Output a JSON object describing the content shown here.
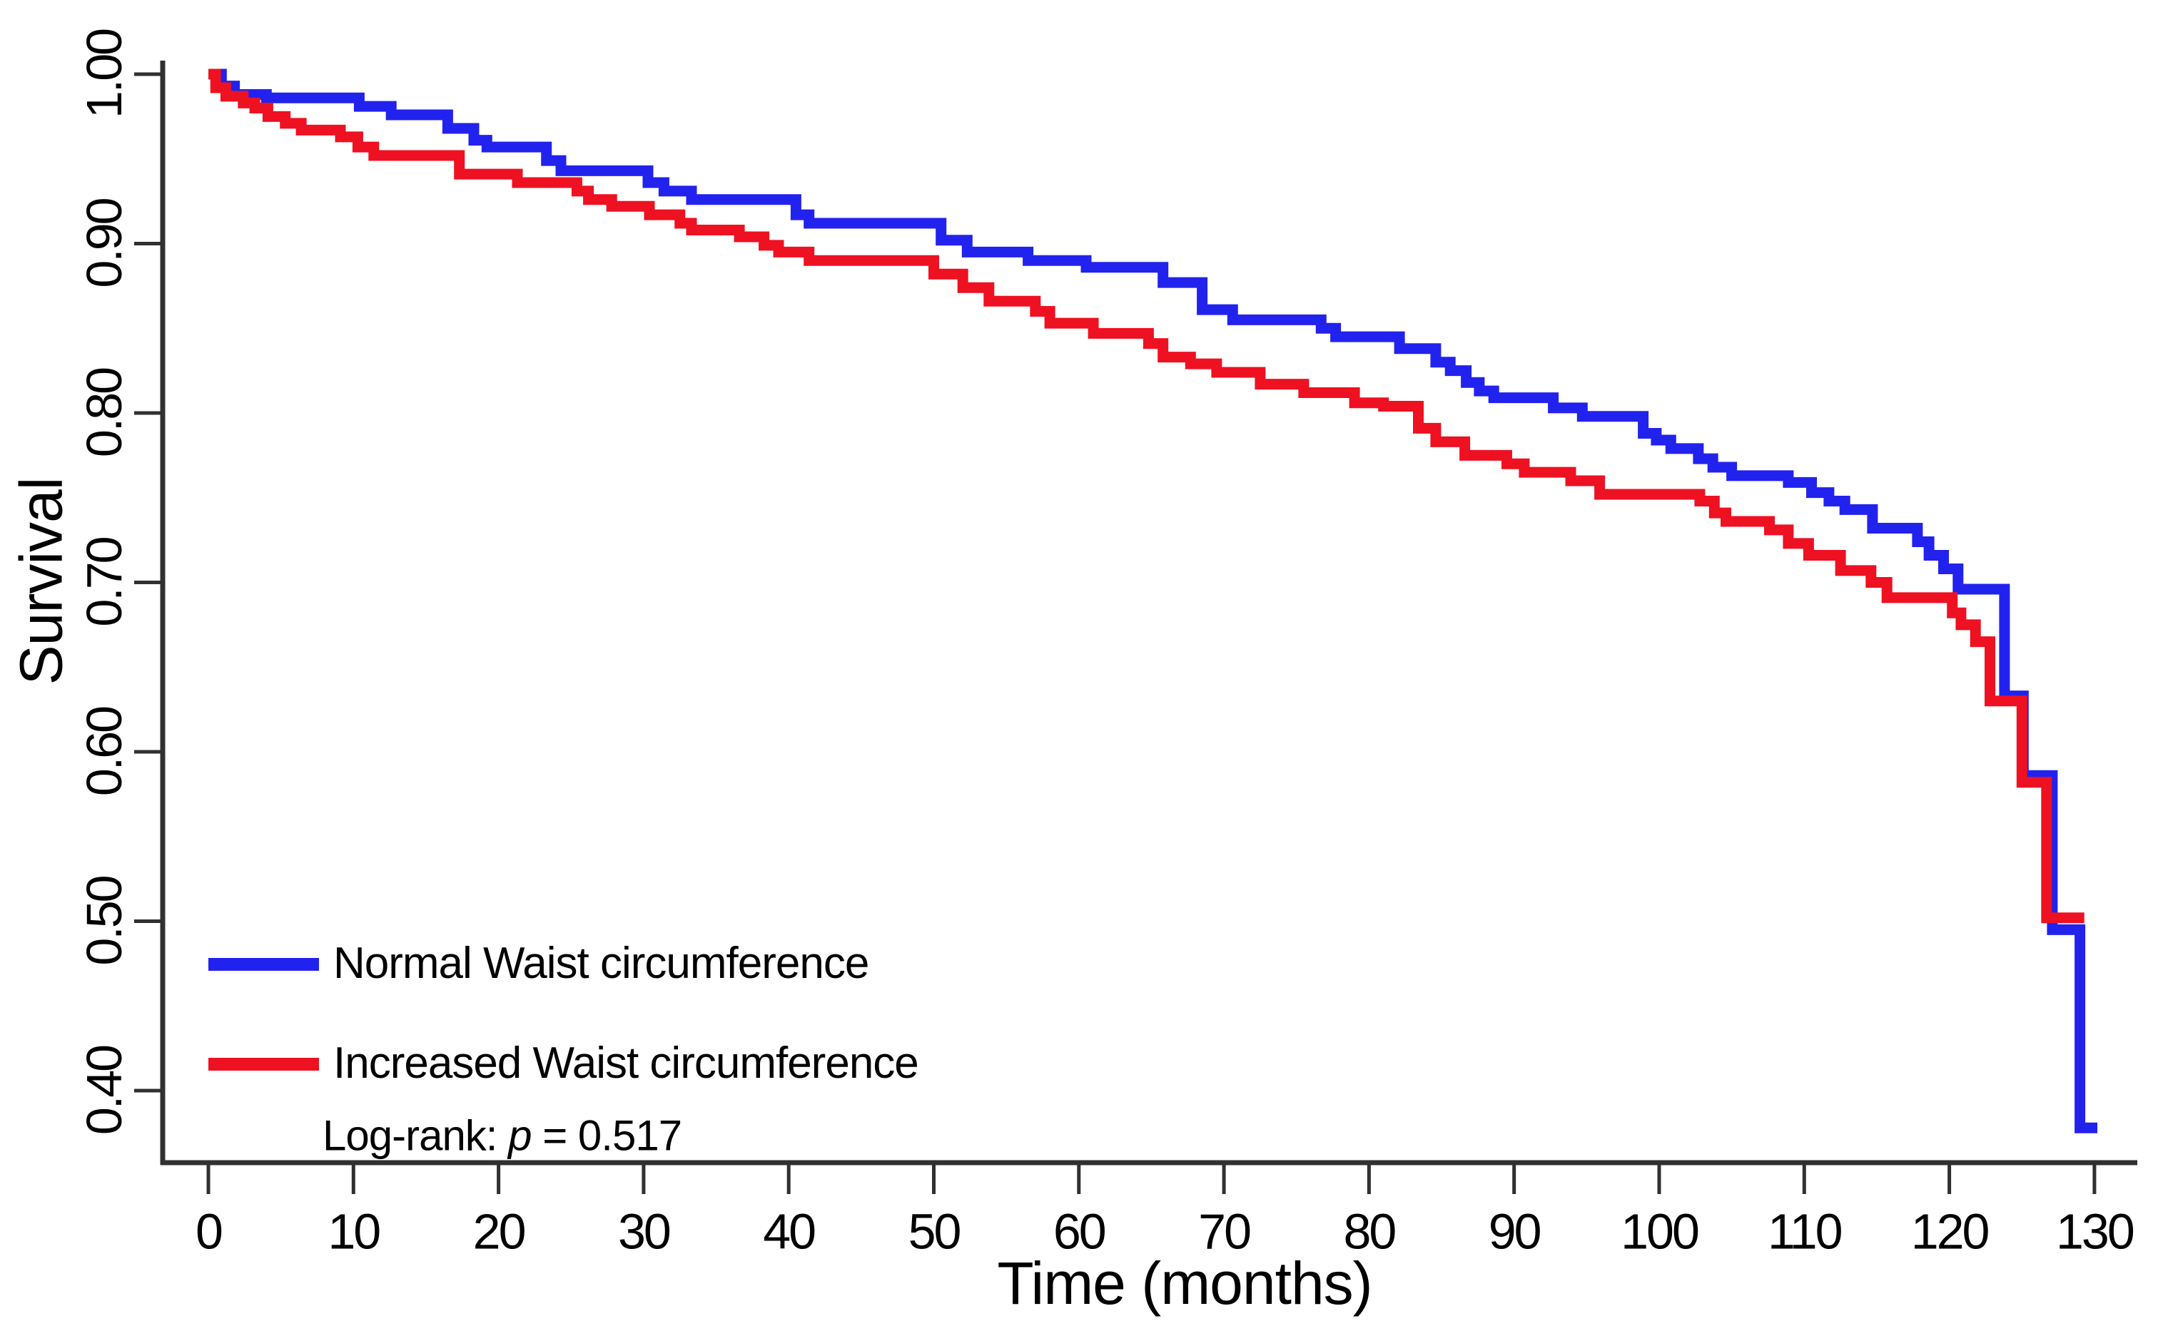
{
  "chart_data": {
    "type": "line",
    "subtype": "kaplan-meier-step",
    "title": "",
    "xlabel": "Time (months)",
    "ylabel": "Survival",
    "xlim": [
      0,
      130
    ],
    "ylim": [
      0.35,
      1.0
    ],
    "grid": "off",
    "legend_position": "lower-left-inside",
    "xticks": [
      0,
      10,
      20,
      30,
      40,
      50,
      60,
      70,
      80,
      90,
      100,
      110,
      120,
      130
    ],
    "yticks": [
      {
        "v": 1.0,
        "label": "1.00"
      },
      {
        "v": 0.9,
        "label": "0.90"
      },
      {
        "v": 0.8,
        "label": "0.80"
      },
      {
        "v": 0.7,
        "label": "0.70"
      },
      {
        "v": 0.6,
        "label": "0.60"
      },
      {
        "v": 0.5,
        "label": "0.50"
      },
      {
        "v": 0.4,
        "label": "0.40"
      }
    ],
    "annotation": {
      "prefix": "Log-rank: ",
      "p_symbol": "p",
      "suffix": " = 0.517"
    },
    "legend": [
      {
        "label": "Normal Waist circumference",
        "color": "#2222EE"
      },
      {
        "label": "Increased Waist circumference",
        "color": "#EE1122"
      }
    ],
    "series": [
      {
        "name": "Normal Waist circumference",
        "color": "#2222EE",
        "end_time": 130.2,
        "points": [
          [
            0,
            1.0
          ],
          [
            0.9,
            0.993
          ],
          [
            1.8,
            0.988
          ],
          [
            4,
            0.986
          ],
          [
            10.4,
            0.981
          ],
          [
            12.6,
            0.976
          ],
          [
            16.5,
            0.968
          ],
          [
            18.3,
            0.961
          ],
          [
            19.2,
            0.957
          ],
          [
            23.3,
            0.949
          ],
          [
            24.3,
            0.943
          ],
          [
            30.3,
            0.936
          ],
          [
            31.4,
            0.931
          ],
          [
            33.3,
            0.926
          ],
          [
            40.5,
            0.917
          ],
          [
            41.4,
            0.912
          ],
          [
            50.5,
            0.902
          ],
          [
            52.3,
            0.895
          ],
          [
            56.5,
            0.89
          ],
          [
            60.5,
            0.886
          ],
          [
            65.8,
            0.877
          ],
          [
            68.5,
            0.861
          ],
          [
            70.6,
            0.855
          ],
          [
            76.7,
            0.85
          ],
          [
            77.7,
            0.845
          ],
          [
            82.1,
            0.838
          ],
          [
            84.6,
            0.83
          ],
          [
            85.6,
            0.825
          ],
          [
            86.7,
            0.818
          ],
          [
            87.6,
            0.813
          ],
          [
            88.6,
            0.809
          ],
          [
            92.7,
            0.803
          ],
          [
            94.7,
            0.798
          ],
          [
            98.9,
            0.788
          ],
          [
            99.8,
            0.784
          ],
          [
            100.8,
            0.779
          ],
          [
            102.7,
            0.773
          ],
          [
            103.7,
            0.768
          ],
          [
            105,
            0.763
          ],
          [
            108.9,
            0.759
          ],
          [
            110.5,
            0.753
          ],
          [
            111.7,
            0.748
          ],
          [
            112.8,
            0.743
          ],
          [
            114.7,
            0.732
          ],
          [
            117.8,
            0.724
          ],
          [
            118.6,
            0.716
          ],
          [
            119.6,
            0.708
          ],
          [
            120.6,
            0.696
          ],
          [
            123.8,
            0.633
          ],
          [
            125.1,
            0.586
          ],
          [
            127.1,
            0.495
          ],
          [
            129,
            0.378
          ]
        ]
      },
      {
        "name": "Increased Waist circumference",
        "color": "#EE1122",
        "end_time": 129.3,
        "points": [
          [
            0,
            1.0
          ],
          [
            0.5,
            0.992
          ],
          [
            1.2,
            0.987
          ],
          [
            2.4,
            0.983
          ],
          [
            3.2,
            0.98
          ],
          [
            4.1,
            0.975
          ],
          [
            5.3,
            0.971
          ],
          [
            6.4,
            0.967
          ],
          [
            9.1,
            0.963
          ],
          [
            10.3,
            0.957
          ],
          [
            11.4,
            0.952
          ],
          [
            17.3,
            0.941
          ],
          [
            21.3,
            0.936
          ],
          [
            25.4,
            0.931
          ],
          [
            26.2,
            0.926
          ],
          [
            27.8,
            0.922
          ],
          [
            30.4,
            0.917
          ],
          [
            32.5,
            0.912
          ],
          [
            33.3,
            0.908
          ],
          [
            36.6,
            0.904
          ],
          [
            38.3,
            0.899
          ],
          [
            39.3,
            0.895
          ],
          [
            41.4,
            0.89
          ],
          [
            50,
            0.882
          ],
          [
            52,
            0.874
          ],
          [
            53.8,
            0.866
          ],
          [
            57,
            0.86
          ],
          [
            58,
            0.853
          ],
          [
            61,
            0.847
          ],
          [
            64.8,
            0.841
          ],
          [
            65.8,
            0.833
          ],
          [
            67.7,
            0.829
          ],
          [
            69.5,
            0.824
          ],
          [
            72.5,
            0.817
          ],
          [
            75.5,
            0.812
          ],
          [
            79,
            0.806
          ],
          [
            81,
            0.804
          ],
          [
            83.4,
            0.791
          ],
          [
            84.6,
            0.783
          ],
          [
            86.6,
            0.775
          ],
          [
            89.5,
            0.77
          ],
          [
            90.7,
            0.765
          ],
          [
            93.9,
            0.76
          ],
          [
            95.9,
            0.752
          ],
          [
            102.8,
            0.748
          ],
          [
            103.8,
            0.741
          ],
          [
            104.6,
            0.736
          ],
          [
            107.6,
            0.731
          ],
          [
            108.9,
            0.723
          ],
          [
            110.3,
            0.716
          ],
          [
            112.5,
            0.707
          ],
          [
            114.6,
            0.7
          ],
          [
            115.7,
            0.691
          ],
          [
            120.2,
            0.682
          ],
          [
            120.8,
            0.675
          ],
          [
            121.8,
            0.665
          ],
          [
            122.8,
            0.63
          ],
          [
            125,
            0.582
          ],
          [
            126.7,
            0.502
          ]
        ]
      }
    ],
    "axis_color": "#303030",
    "text_color": "#000000",
    "background": "#ffffff"
  }
}
